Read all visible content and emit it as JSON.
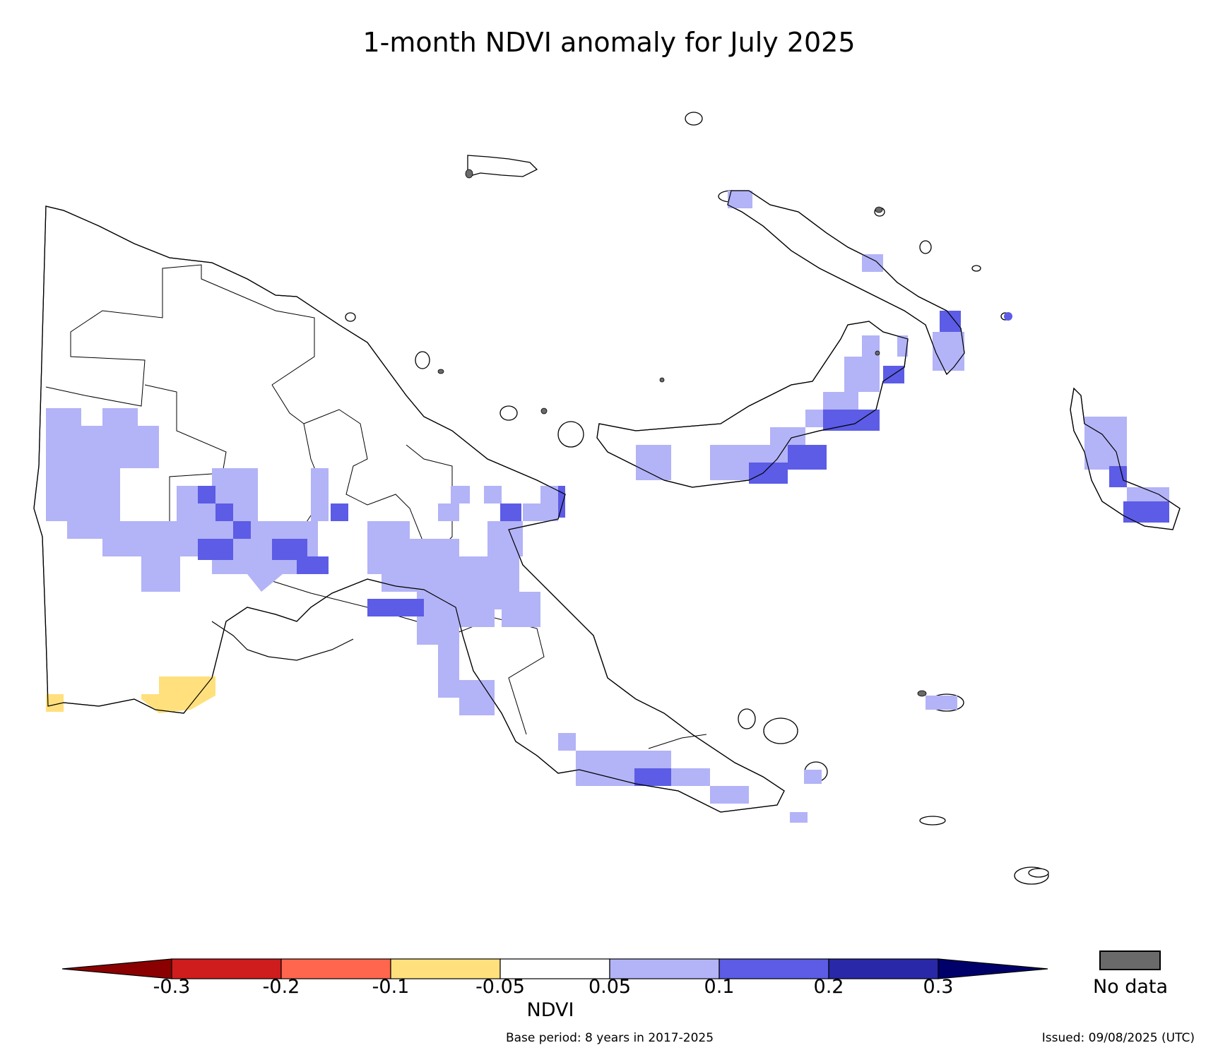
{
  "title": "1-month NDVI anomaly for July 2025",
  "colorbar": {
    "label": "NDVI",
    "ticks": [
      "-0.3",
      "-0.2",
      "-0.1",
      "-0.05",
      "0.05",
      "0.1",
      "0.2",
      "0.3"
    ],
    "bins": [
      {
        "range": "< -0.3",
        "color": "#8b0000"
      },
      {
        "range": "-0.3 to -0.2",
        "color": "#cf1c1c"
      },
      {
        "range": "-0.2 to -0.1",
        "color": "#ff664d"
      },
      {
        "range": "-0.1 to -0.05",
        "color": "#ffe07d"
      },
      {
        "range": "-0.05 to 0.05",
        "color": "#ffffff"
      },
      {
        "range": "0.05 to 0.1",
        "color": "#b3b3f7"
      },
      {
        "range": "0.1 to 0.2",
        "color": "#5c5ce6"
      },
      {
        "range": "0.2 to 0.3",
        "color": "#2828a8"
      },
      {
        "range": "> 0.3",
        "color": "#00006b"
      }
    ]
  },
  "no_data": {
    "label": "No data",
    "color": "#6a6a6a"
  },
  "footer": {
    "base_period": "Base period: 8 years in 2017-2025",
    "issued": "Issued: 09/08/2025 (UTC)"
  },
  "map": {
    "region": "Papua New Guinea",
    "land_fill": "#ffffff",
    "outline_color": "#000000",
    "anomaly_classes_present": [
      "-0.1 to -0.05",
      "0.05 to 0.1",
      "0.1 to 0.2"
    ]
  }
}
